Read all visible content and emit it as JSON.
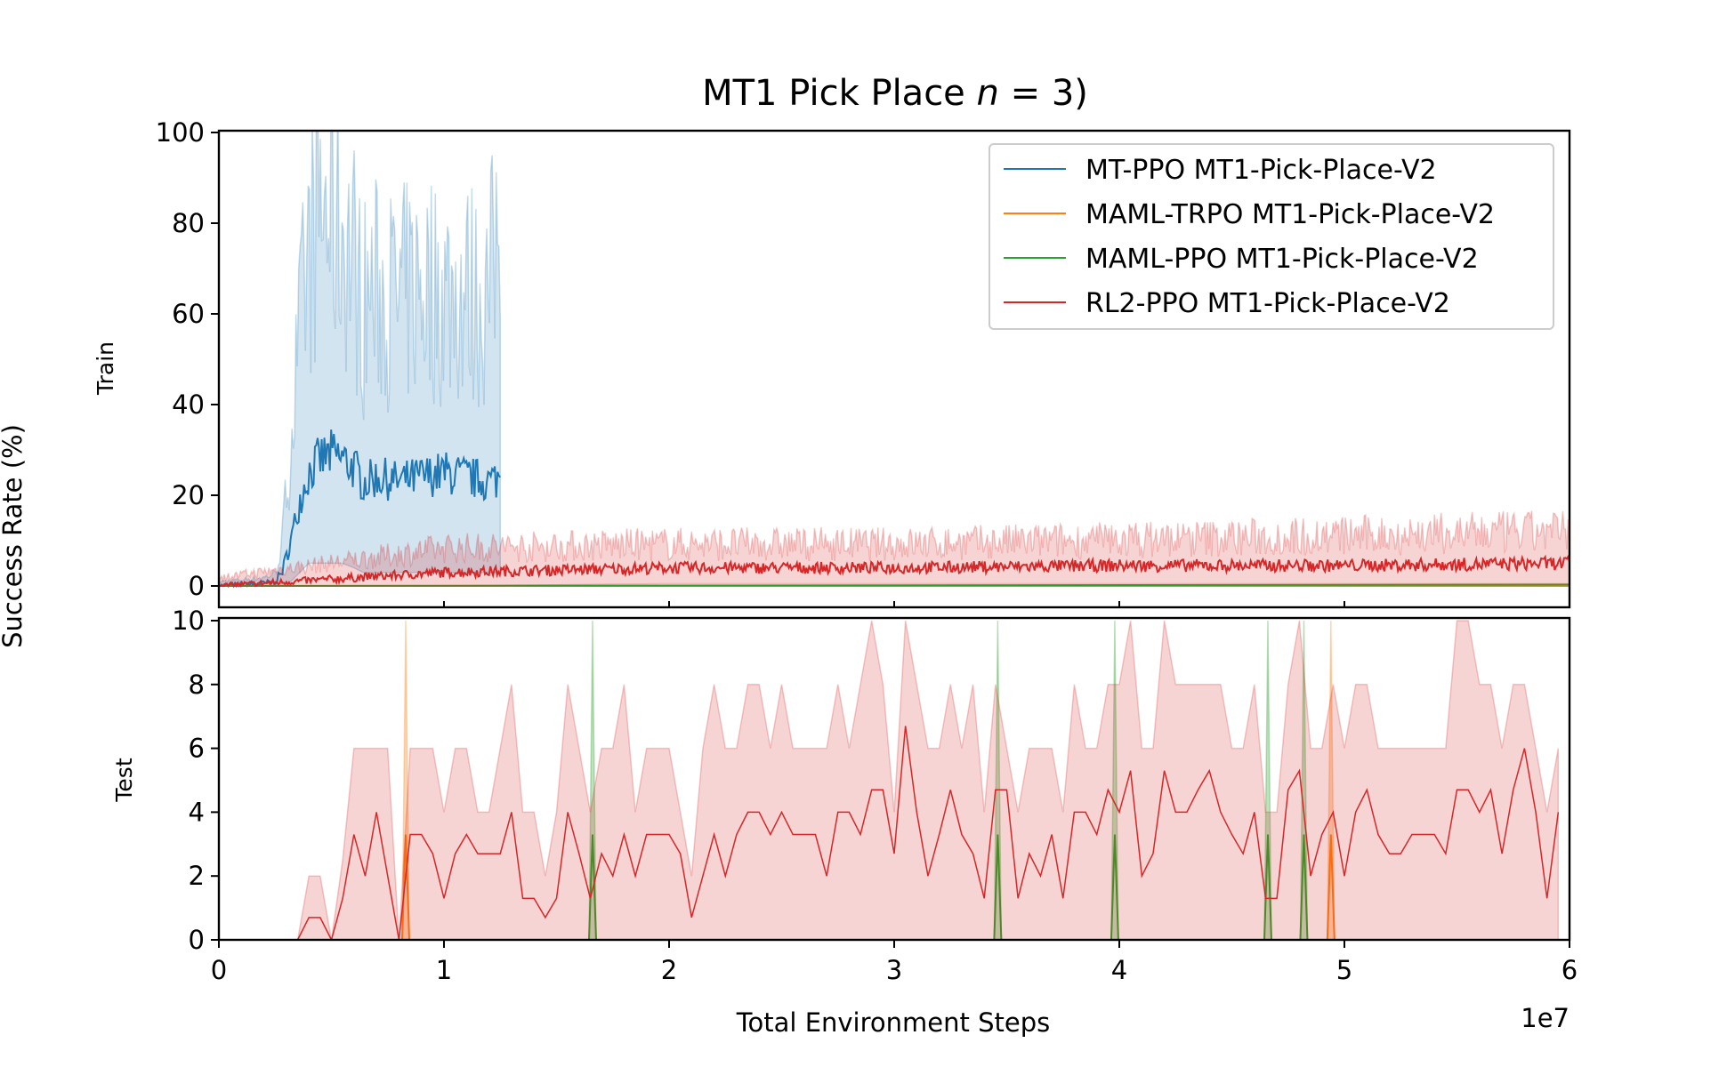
{
  "chart_data": {
    "type": "line",
    "title_prefix": "MT1 Pick Place ",
    "title_var": "n",
    "title_suffix": " = 3)",
    "xlabel": "Total Environment Steps",
    "ylabel": "Success Rate (%)",
    "x_multiplier_label": "1e7",
    "xlim": [
      0,
      6
    ],
    "xticks": [
      "0",
      "1",
      "2",
      "3",
      "4",
      "5",
      "6"
    ],
    "legend_position": "top-right",
    "grid": false,
    "panels": [
      {
        "label": "Train",
        "ylim": [
          0,
          100
        ],
        "yticks": [
          "0",
          "20",
          "40",
          "60",
          "80",
          "100"
        ],
        "series": [
          {
            "name": "MT-PPO MT1-Pick-Place-V2",
            "color": "#1f77b4",
            "x": [
              0,
              0.2,
              0.25,
              0.28,
              0.32,
              0.36,
              0.4,
              0.45,
              0.5,
              0.55,
              0.6,
              0.64,
              0.66,
              0.7,
              0.8,
              0.9,
              1.0,
              1.1,
              1.2,
              1.25
            ],
            "mean": [
              0,
              0.5,
              1,
              3,
              10,
              19,
              25,
              28,
              29,
              28,
              26,
              23,
              23,
              24,
              23,
              24,
              25,
              24,
              23,
              24
            ],
            "lower": [
              0,
              0,
              0,
              0,
              1,
              3,
              5,
              5,
              5,
              5,
              4,
              3,
              3,
              3,
              3,
              3,
              3,
              3,
              3,
              3
            ],
            "upper": [
              1,
              2,
              3,
              10,
              35,
              60,
              80,
              90,
              88,
              85,
              78,
              65,
              70,
              70,
              68,
              72,
              70,
              70,
              68,
              92
            ]
          },
          {
            "name": "MAML-TRPO MT1-Pick-Place-V2",
            "color": "#ff7f0e",
            "x": [
              0,
              6
            ],
            "mean": [
              0,
              0
            ]
          },
          {
            "name": "MAML-PPO MT1-Pick-Place-V2",
            "color": "#2ca02c",
            "x": [
              0,
              6
            ],
            "mean": [
              0,
              0.3
            ]
          },
          {
            "name": "RL2-PPO MT1-Pick-Place-V2",
            "color": "#d62728",
            "x": [
              0,
              1,
              2,
              3,
              4,
              5,
              6
            ],
            "mean": [
              0,
              3,
              4,
              4,
              4.5,
              4.5,
              5
            ],
            "lower": [
              0,
              0,
              0.5,
              0.5,
              0.5,
              0.5,
              0.5
            ],
            "upper": [
              2,
              9,
              10,
              10,
              11,
              12,
              13
            ]
          }
        ]
      },
      {
        "label": "Test",
        "ylim": [
          0,
          10
        ],
        "yticks": [
          "0",
          "2",
          "4",
          "6",
          "8",
          "10"
        ],
        "series": [
          {
            "name": "MAML-TRPO MT1-Pick-Place-V2",
            "color": "#ff7f0e",
            "spikes": [
              {
                "x": 0.83,
                "mean": 3.3,
                "upper": 10
              },
              {
                "x": 4.94,
                "mean": 3.3,
                "upper": 10
              }
            ]
          },
          {
            "name": "MAML-PPO MT1-Pick-Place-V2",
            "color": "#2ca02c",
            "spikes": [
              {
                "x": 1.66,
                "mean": 3.3,
                "upper": 10
              },
              {
                "x": 3.46,
                "mean": 3.3,
                "upper": 10
              },
              {
                "x": 3.98,
                "mean": 3.3,
                "upper": 10
              },
              {
                "x": 4.66,
                "mean": 3.3,
                "upper": 10
              },
              {
                "x": 4.82,
                "mean": 3.3,
                "upper": 10
              }
            ]
          },
          {
            "name": "RL2-PPO MT1-Pick-Place-V2",
            "color": "#d62728",
            "x": [
              0,
              0.35,
              0.4,
              0.45,
              0.5,
              0.55,
              0.6,
              0.65,
              0.7,
              0.75,
              0.8,
              0.85,
              0.9,
              0.95,
              1.0,
              1.05,
              1.1,
              1.15,
              1.2,
              1.25,
              1.3,
              1.35,
              1.4,
              1.45,
              1.5,
              1.55,
              1.6,
              1.65,
              1.7,
              1.75,
              1.8,
              1.85,
              1.9,
              1.95,
              2.0,
              2.05,
              2.1,
              2.15,
              2.2,
              2.25,
              2.3,
              2.35,
              2.4,
              2.45,
              2.5,
              2.55,
              2.6,
              2.65,
              2.7,
              2.75,
              2.8,
              2.85,
              2.9,
              2.95,
              3.0,
              3.05,
              3.1,
              3.15,
              3.2,
              3.25,
              3.3,
              3.35,
              3.4,
              3.45,
              3.5,
              3.55,
              3.6,
              3.65,
              3.7,
              3.75,
              3.8,
              3.85,
              3.9,
              3.95,
              4.0,
              4.05,
              4.1,
              4.15,
              4.2,
              4.25,
              4.3,
              4.35,
              4.4,
              4.45,
              4.5,
              4.55,
              4.6,
              4.65,
              4.7,
              4.75,
              4.8,
              4.85,
              4.9,
              4.95,
              5.0,
              5.05,
              5.1,
              5.15,
              5.2,
              5.25,
              5.3,
              5.35,
              5.4,
              5.45,
              5.5,
              5.55,
              5.6,
              5.65,
              5.7,
              5.75,
              5.8,
              5.85,
              5.9,
              5.95
            ],
            "mean": [
              0,
              0,
              0.7,
              0.7,
              0,
              1.3,
              3.3,
              2,
              4,
              2,
              0,
              3.3,
              3.3,
              2.7,
              1.3,
              2.7,
              3.3,
              2.7,
              2.7,
              2.7,
              4,
              1.3,
              1.3,
              0.7,
              1.3,
              4,
              2.7,
              1.3,
              2.7,
              2,
              3.3,
              2,
              3.3,
              3.3,
              3.3,
              2.7,
              0.7,
              2,
              3.3,
              2,
              3.3,
              4,
              4,
              3.3,
              4,
              3.3,
              3.3,
              3.3,
              2,
              4,
              4,
              3.3,
              4.7,
              4.7,
              2.7,
              6.7,
              4,
              2,
              3.3,
              4.7,
              3.3,
              2.7,
              1.3,
              4.7,
              4.7,
              1.3,
              2.7,
              2,
              3.3,
              1.3,
              4,
              4,
              3.3,
              4.7,
              4,
              5.3,
              2,
              2.7,
              5.3,
              4,
              4,
              4.7,
              5.3,
              4,
              3.3,
              2.7,
              4,
              1.3,
              1.3,
              4.7,
              5.3,
              2,
              3.3,
              4,
              2,
              4,
              4.7,
              3.3,
              2.7,
              2.7,
              3.3,
              3.3,
              3.3,
              2.7,
              4.7,
              4.7,
              4,
              4.7,
              2.7,
              4.7,
              6,
              4,
              1.3,
              4
            ],
            "lower": [
              0,
              0,
              0,
              0,
              0,
              0,
              0,
              0,
              0,
              0,
              0,
              0,
              0,
              0,
              0,
              0,
              0,
              0,
              0,
              0,
              0,
              0,
              0,
              0,
              0,
              0,
              0,
              0,
              0,
              0,
              0,
              0,
              0,
              0,
              0,
              0,
              0,
              0,
              0,
              0,
              0,
              0,
              0,
              0,
              0,
              0,
              0,
              0,
              0,
              0,
              0,
              0,
              0,
              0,
              0,
              0,
              0,
              0,
              0,
              0,
              0,
              0,
              0,
              0,
              0,
              0,
              0,
              0,
              0,
              0,
              0,
              0,
              0,
              0,
              0,
              0,
              0,
              0,
              0,
              0,
              0,
              0,
              0,
              0,
              0,
              0,
              0,
              0,
              0,
              0,
              0,
              0,
              0,
              0,
              0,
              0,
              0,
              0,
              0,
              0,
              0,
              0,
              0,
              0,
              0,
              0,
              0,
              0,
              0,
              0,
              0,
              0,
              0,
              0
            ],
            "upper": [
              0,
              0,
              2,
              2,
              0,
              2.5,
              6,
              6,
              6,
              6,
              0,
              6,
              6,
              6,
              4,
              6,
              6,
              4,
              4,
              6,
              8,
              4,
              4,
              2,
              4,
              8,
              6,
              4,
              6,
              6,
              8,
              4,
              6,
              6,
              6,
              4,
              2,
              6,
              8,
              6,
              6,
              8,
              8,
              6,
              8,
              6,
              6,
              6,
              6,
              8,
              6,
              8,
              10,
              8,
              4,
              10,
              8,
              6,
              6,
              8,
              6,
              8,
              4,
              8,
              6,
              4,
              6,
              6,
              6,
              4,
              8,
              6,
              6,
              8,
              8,
              10,
              6,
              6,
              10,
              8,
              8,
              8,
              8,
              8,
              6,
              6,
              8,
              4,
              4,
              8,
              10,
              6,
              6,
              8,
              6,
              8,
              8,
              6,
              6,
              6,
              6,
              6,
              6,
              6,
              10,
              10,
              8,
              8,
              6,
              8,
              8,
              6,
              4,
              6
            ]
          }
        ]
      }
    ]
  }
}
